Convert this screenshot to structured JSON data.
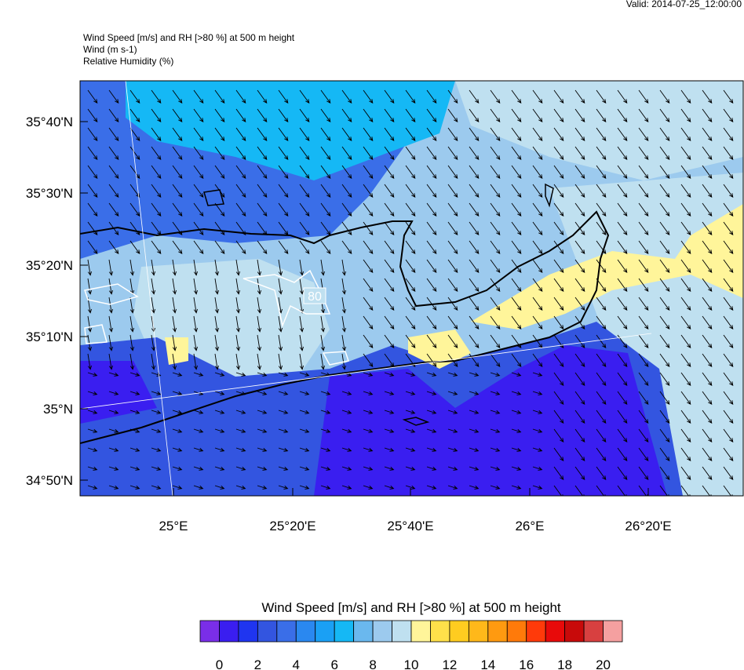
{
  "header": {
    "valid": "Valid: 2014-07-25_12:00:00",
    "lines": [
      "Wind Speed [m/s] and RH [>80 %] at 500 m height",
      "Wind   (m s-1)",
      "Relative Humidity   (%)"
    ]
  },
  "map": {
    "lat_labels": [
      "35°40'N",
      "35°30'N",
      "35°20'N",
      "35°10'N",
      "35°N",
      "34°50'N"
    ],
    "lon_labels": [
      "25°E",
      "25°20'E",
      "25°40'E",
      "26°E",
      "26°20'E"
    ],
    "contour_label": "80"
  },
  "colorbar": {
    "title": "Wind Speed [m/s] and RH [>80 %] at 500 m height",
    "labels": [
      0,
      2,
      4,
      6,
      8,
      10,
      12,
      14,
      16,
      18,
      20
    ],
    "colors": [
      "#7a2ee8",
      "#3a1ef0",
      "#1f35f0",
      "#3355e0",
      "#3a6ee8",
      "#2a88f0",
      "#1aa0f5",
      "#15b8f5",
      "#6ab8ee",
      "#9ccaee",
      "#bfe0f0",
      "#fff59a",
      "#ffe04a",
      "#ffcc20",
      "#ffb81a",
      "#ff9a10",
      "#ff7a0a",
      "#ff3a0a",
      "#e80a0a",
      "#c80a0a",
      "#d84040",
      "#f5a0a0"
    ]
  }
}
